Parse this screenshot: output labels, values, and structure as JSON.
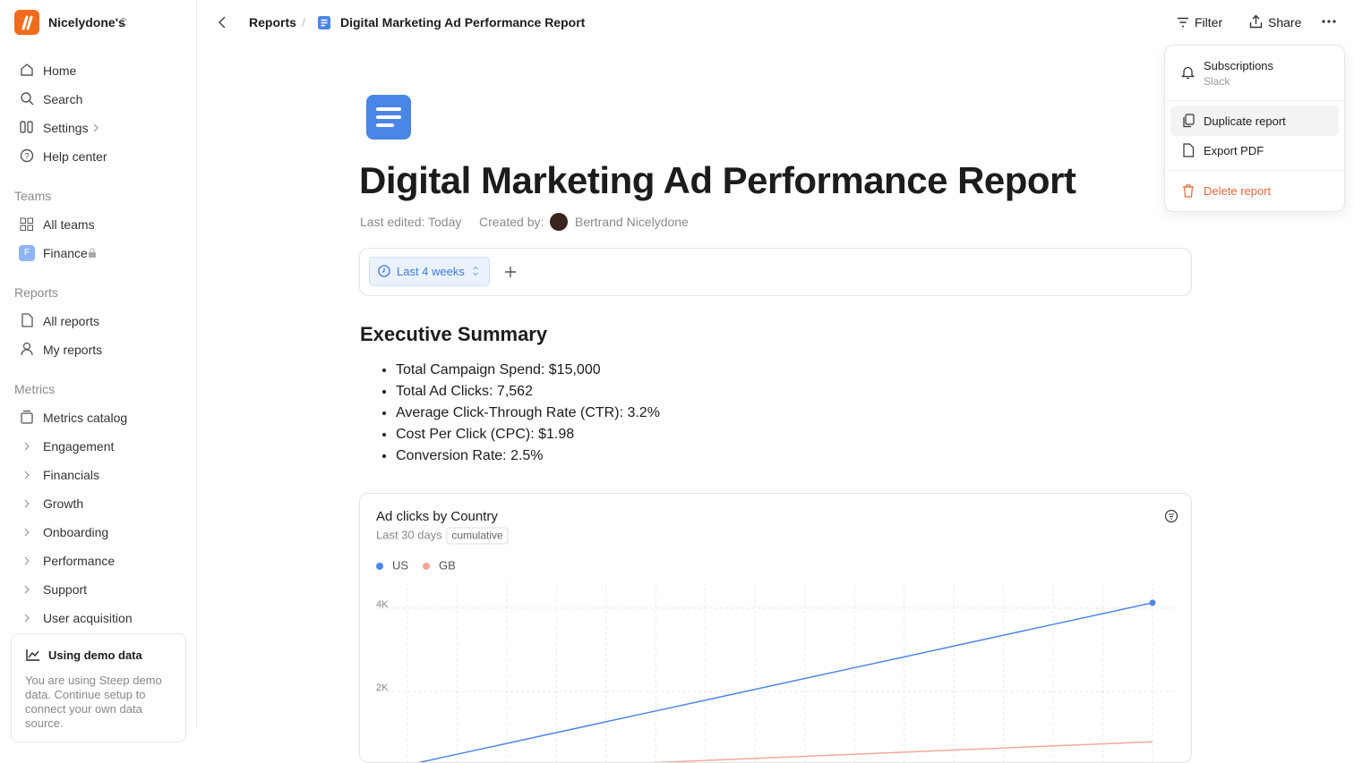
{
  "sidebar": {
    "workspace": "Nicelydone's",
    "nav": [
      "Home",
      "Search",
      "Settings",
      "Help center"
    ],
    "sections": [
      {
        "title": "Teams",
        "items": [
          "All teams",
          "Finance"
        ]
      },
      {
        "title": "Reports",
        "items": [
          "All reports",
          "My reports"
        ]
      },
      {
        "title": "Metrics",
        "items": [
          "Metrics catalog",
          "Engagement",
          "Financials",
          "Growth",
          "Onboarding",
          "Performance",
          "Support",
          "User acquisition"
        ]
      }
    ],
    "team_badge": "F",
    "demo": {
      "title": "Using demo data",
      "text": "You are using Steep demo data. Continue setup to connect your own data source."
    }
  },
  "header": {
    "breadcrumb": [
      "Reports",
      "Digital Marketing Ad Performance Report"
    ],
    "separator": "/",
    "actions": [
      "Filter",
      "Share"
    ]
  },
  "menu": {
    "items": [
      {
        "label": "Subscriptions",
        "sub": "Slack"
      },
      {
        "label": "Duplicate report"
      },
      {
        "label": "Export PDF"
      },
      {
        "label": "Delete report"
      }
    ]
  },
  "document": {
    "title": "Digital Marketing Ad Performance Report",
    "last_edited": "Last edited: Today",
    "created_by": "Created by:",
    "author": "Bertrand Nicelydone",
    "date_filter": "Last 4 weeks",
    "section_title": "Executive Summary",
    "bullets": [
      "Total Campaign Spend: $15,000",
      "Total Ad Clicks: 7,562",
      "Average Click-Through Rate (CTR): 3.2%",
      "Cost Per Click (CPC): $1.98",
      "Conversion Rate: 2.5%"
    ]
  },
  "chart_data": {
    "type": "line",
    "title": "Ad clicks by Country",
    "subtitle": "Last 30 days",
    "badge": "cumulative",
    "categories": [
      null,
      null,
      null,
      null,
      null,
      null,
      null,
      null,
      null,
      null,
      null,
      null,
      null,
      null,
      null,
      null
    ],
    "series": [
      {
        "name": "US",
        "color": "#4f86e8",
        "values": [
          230,
          490,
          750,
          1010,
          1270,
          1530,
          1790,
          2050,
          2310,
          2570,
          2830,
          3090,
          3350,
          3610,
          3870,
          4130
        ]
      },
      {
        "name": "GB",
        "color": "#f2a99a",
        "values": [
          40,
          90,
          140,
          190,
          240,
          290,
          340,
          390,
          440,
          490,
          540,
          590,
          640,
          690,
          740,
          790
        ]
      }
    ],
    "ylim": [
      0,
      4600
    ],
    "yticks": [
      {
        "value": 2000,
        "label": "2K"
      },
      {
        "value": 4000,
        "label": "4K"
      }
    ],
    "grid": true
  }
}
